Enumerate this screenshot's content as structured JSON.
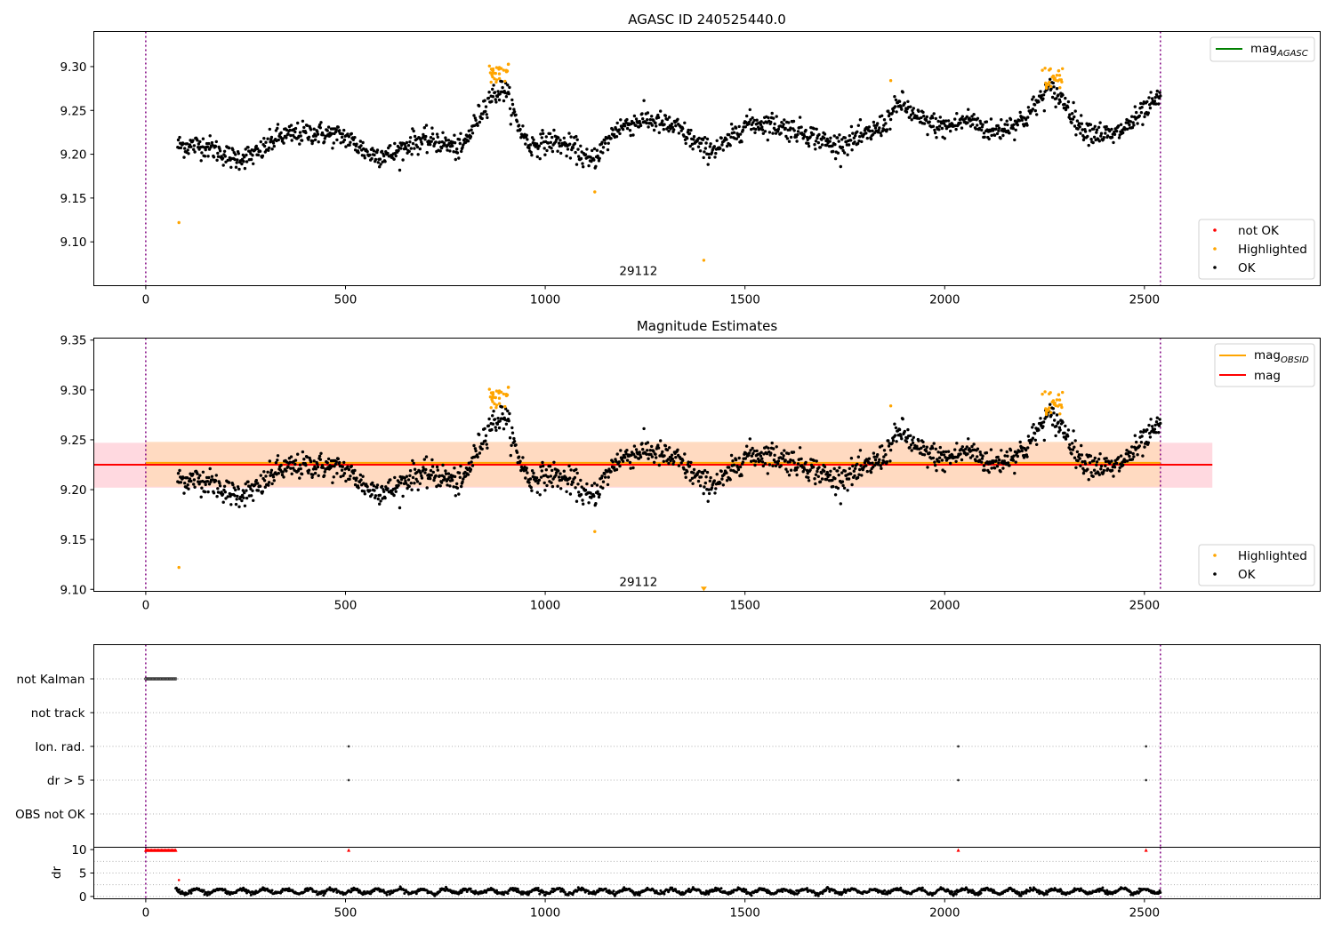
{
  "figure": {
    "background": "#ffffff"
  },
  "colors": {
    "ok": "#000000",
    "highlighted": "#ffa500",
    "not_ok": "#ff0000",
    "mag_agasc": "#008000",
    "mag_obsid": "#ffa500",
    "mag": "#ff0000",
    "obs_span": "#800080",
    "band_mag": "#ffc0cb",
    "band_obsid": "#ffdab9",
    "grid": "#b0b0b0"
  },
  "chart_data": [
    {
      "type": "scatter",
      "title": "AGASC ID 240525440.0",
      "xlim": [
        -130,
        2940
      ],
      "ylim": [
        9.05,
        9.34
      ],
      "xticks": [
        0,
        500,
        1000,
        1500,
        2000,
        2500
      ],
      "xtick_labels": [
        "0",
        "500",
        "1000",
        "1500",
        "2000",
        "2500"
      ],
      "yticks": [
        9.1,
        9.15,
        9.2,
        9.25,
        9.3
      ],
      "ytick_labels": [
        "9.10",
        "9.15",
        "9.20",
        "9.25",
        "9.30"
      ],
      "obs_boundaries": [
        0,
        2540
      ],
      "obs_labels": [
        {
          "x": 1270,
          "y": 9.066,
          "text": "29112"
        }
      ],
      "legend_upper": [
        {
          "label": "mag",
          "sub": "AGASC",
          "color": "#008000"
        }
      ],
      "legend_lower": [
        "not OK",
        "Highlighted",
        "OK"
      ],
      "legend_position": [
        "top-right",
        "bottom-right"
      ],
      "ok_trend": [
        [
          80,
          9.21
        ],
        [
          150,
          9.21
        ],
        [
          220,
          9.195
        ],
        [
          280,
          9.2
        ],
        [
          330,
          9.22
        ],
        [
          420,
          9.225
        ],
        [
          500,
          9.22
        ],
        [
          560,
          9.2
        ],
        [
          620,
          9.2
        ],
        [
          670,
          9.215
        ],
        [
          730,
          9.215
        ],
        [
          790,
          9.205
        ],
        [
          830,
          9.24
        ],
        [
          860,
          9.265
        ],
        [
          900,
          9.275
        ],
        [
          930,
          9.235
        ],
        [
          960,
          9.21
        ],
        [
          1020,
          9.215
        ],
        [
          1080,
          9.205
        ],
        [
          1110,
          9.19
        ],
        [
          1140,
          9.205
        ],
        [
          1180,
          9.23
        ],
        [
          1250,
          9.24
        ],
        [
          1330,
          9.23
        ],
        [
          1400,
          9.205
        ],
        [
          1450,
          9.21
        ],
        [
          1500,
          9.235
        ],
        [
          1560,
          9.235
        ],
        [
          1650,
          9.225
        ],
        [
          1720,
          9.21
        ],
        [
          1800,
          9.22
        ],
        [
          1850,
          9.235
        ],
        [
          1890,
          9.26
        ],
        [
          1930,
          9.24
        ],
        [
          2000,
          9.23
        ],
        [
          2060,
          9.24
        ],
        [
          2120,
          9.225
        ],
        [
          2200,
          9.24
        ],
        [
          2260,
          9.275
        ],
        [
          2300,
          9.26
        ],
        [
          2340,
          9.23
        ],
        [
          2420,
          9.22
        ],
        [
          2480,
          9.24
        ],
        [
          2540,
          9.265
        ]
      ],
      "ok_scatter": 0.011,
      "ok_count": 1550,
      "highlighted_clusters": [
        {
          "x": [
            860,
            910
          ],
          "y": 9.295,
          "n": 30
        },
        {
          "x": [
            2240,
            2295
          ],
          "y": 9.286,
          "n": 28
        }
      ],
      "highlighted_points": [
        [
          83,
          9.122
        ],
        [
          1124,
          9.157
        ],
        [
          1397,
          9.079
        ],
        [
          1865,
          9.284
        ]
      ]
    },
    {
      "type": "scatter",
      "title": "Magnitude Estimates",
      "xlim": [
        -130,
        2940
      ],
      "ylim": [
        9.098,
        9.352
      ],
      "xticks": [
        0,
        500,
        1000,
        1500,
        2000,
        2500
      ],
      "xtick_labels": [
        "0",
        "500",
        "1000",
        "1500",
        "2000",
        "2500"
      ],
      "yticks": [
        9.1,
        9.15,
        9.2,
        9.25,
        9.3,
        9.35
      ],
      "ytick_labels": [
        "9.10",
        "9.15",
        "9.20",
        "9.25",
        "9.30",
        "9.35"
      ],
      "obs_boundaries": [
        0,
        2540
      ],
      "obs_labels": [
        {
          "x": 1270,
          "y": 9.107,
          "text": "29112"
        }
      ],
      "mag_obsid": 9.226,
      "mag_obsid_range": [
        0,
        2540
      ],
      "mag": 9.225,
      "mag_range": [
        -130,
        2670
      ],
      "band_mag": [
        9.202,
        9.247
      ],
      "band_obsid": [
        9.203,
        9.248
      ],
      "legend_upper": [
        {
          "label": "mag",
          "sub": "OBSID",
          "color": "#ffa500"
        },
        {
          "label": "mag",
          "sub": "",
          "color": "#ff0000"
        }
      ],
      "legend_lower": [
        "Highlighted",
        "OK"
      ],
      "legend_position": [
        "top-right",
        "bottom-right"
      ],
      "highlighted_points": [
        [
          83,
          9.122
        ],
        [
          1124,
          9.158
        ],
        [
          1865,
          9.284
        ]
      ],
      "offscale_marker": {
        "x": 1397,
        "y": 9.1
      }
    },
    {
      "type": "scatter",
      "title": "",
      "xlim": [
        -130,
        2940
      ],
      "flag_rows": [
        "not Kalman",
        "not track",
        "Ion. rad.",
        "dr > 5",
        "OBS not OK"
      ],
      "flag_points": {
        "not Kalman": {
          "range": [
            0,
            75
          ],
          "step": 3
        },
        "Ion. rad.": [
          508,
          2034,
          2504
        ],
        "dr > 5": [
          508,
          2034,
          2504
        ]
      },
      "dr": {
        "ylabel": "dr",
        "ylim": [
          -0.5,
          10.5
        ],
        "yticks": [
          0,
          5,
          10
        ],
        "ytick_labels": [
          "0",
          "5",
          "10"
        ],
        "clipped": {
          "range": [
            0,
            75
          ],
          "step": 3,
          "extra": [
            508,
            2034,
            2504
          ],
          "value": 9.9
        },
        "base": {
          "range": [
            75,
            2540
          ],
          "mean": 1.1,
          "spread": 0.9
        },
        "isolated": [
          [
            83,
            3.5
          ]
        ]
      },
      "xticks": [
        0,
        500,
        1000,
        1500,
        2000,
        2500
      ],
      "xtick_labels": [
        "0",
        "500",
        "1000",
        "1500",
        "2000",
        "2500"
      ]
    }
  ]
}
